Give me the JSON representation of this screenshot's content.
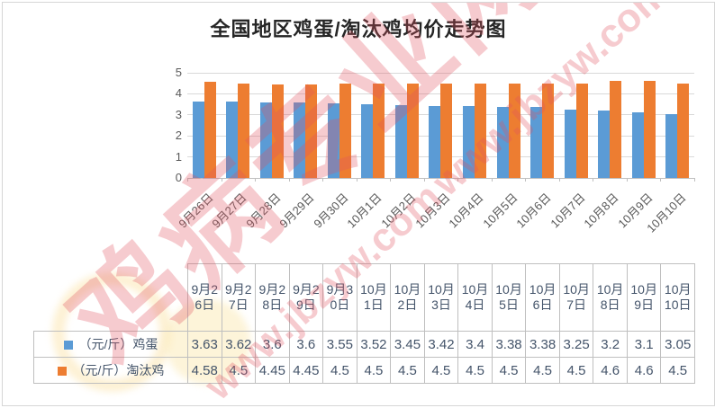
{
  "chart_data": {
    "type": "bar",
    "title": "全国地区鸡蛋/淘汰鸡均价走势图",
    "categories": [
      "9月26日",
      "9月27日",
      "9月28日",
      "9月29日",
      "9月30日",
      "10月1日",
      "10月2日",
      "10月3日",
      "10月4日",
      "10月5日",
      "10月6日",
      "10月7日",
      "10月8日",
      "10月9日",
      "10月10日"
    ],
    "series": [
      {
        "name": "（元/斤）鸡蛋",
        "color": "#5B9BD5",
        "values": [
          3.63,
          3.62,
          3.6,
          3.6,
          3.55,
          3.52,
          3.45,
          3.42,
          3.4,
          3.38,
          3.38,
          3.25,
          3.2,
          3.1,
          3.05
        ]
      },
      {
        "name": "（元/斤）淘汰鸡",
        "color": "#ED7D31",
        "values": [
          4.58,
          4.5,
          4.45,
          4.45,
          4.5,
          4.5,
          4.5,
          4.5,
          4.5,
          4.5,
          4.5,
          4.5,
          4.6,
          4.6,
          4.5
        ]
      }
    ],
    "xlabel": "",
    "ylabel": "",
    "ylim": [
      0,
      5
    ],
    "y_ticks": [
      0,
      1,
      2,
      3,
      4,
      5
    ],
    "grid": true,
    "legend_position": "data-table-left",
    "data_table_shown": true
  },
  "watermark": {
    "site_name": "鸡病专业网",
    "site_url": "www.jbzyw.com",
    "color": "#E2525F"
  },
  "style_colors": {
    "grid": "#D9D9D9",
    "axis": "#BFBFBF",
    "axis_text": "#595959",
    "table_text": "#44546A",
    "title_text": "#262626"
  }
}
